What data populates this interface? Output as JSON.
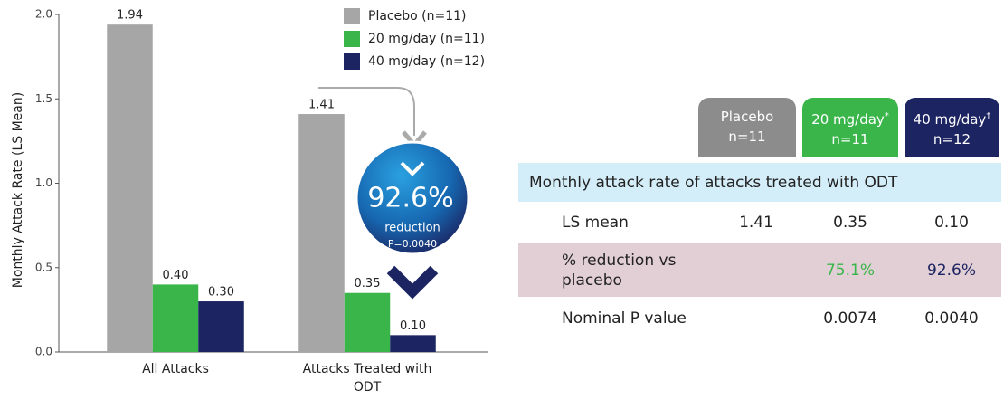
{
  "chart_data": {
    "type": "bar",
    "y_label": "Monthly Attack Rate (LS Mean)",
    "categories": [
      "All Attacks",
      "Attacks Treated with ODT"
    ],
    "series": [
      {
        "name": "Placebo (n=11)",
        "color": "#a6a6a6",
        "values": [
          1.94,
          1.41
        ],
        "value_labels": [
          "1.94",
          "1.41"
        ]
      },
      {
        "name": "20 mg/day (n=11)",
        "color": "#3ab54a",
        "values": [
          0.4,
          0.35
        ],
        "value_labels": [
          "0.40",
          "0.35"
        ]
      },
      {
        "name": "40 mg/day (n=12)",
        "color": "#1c2461",
        "values": [
          0.3,
          0.1
        ],
        "value_labels": [
          "0.30",
          "0.10"
        ]
      }
    ],
    "ylim": [
      0,
      2.0
    ],
    "yticks": [
      {
        "value": 0,
        "label": "0.0"
      },
      0.5,
      {
        "value": 1,
        "label": "1.0"
      },
      1.5,
      {
        "value": 2,
        "label": "2.0"
      }
    ],
    "legend": "top-right",
    "annotation": {
      "value": "92.6%",
      "label": "reduction",
      "p": "P=0.0040"
    }
  },
  "table": {
    "columns": [
      {
        "name": "Placebo",
        "n": "n=11"
      },
      {
        "name": "20 mg/day",
        "mark": "*",
        "n": "n=11"
      },
      {
        "name": "40 mg/day",
        "mark": "†",
        "n": "n=12"
      }
    ],
    "section": "Monthly attack rate of attacks treated with ODT",
    "rows": [
      [
        "LS mean",
        "1.41",
        "0.35",
        "0.10"
      ],
      [
        "% reduction vs placebo",
        null,
        "75.1%",
        "92.6%"
      ],
      [
        "Nominal P value",
        null,
        "0.0074",
        "0.0040"
      ]
    ]
  }
}
